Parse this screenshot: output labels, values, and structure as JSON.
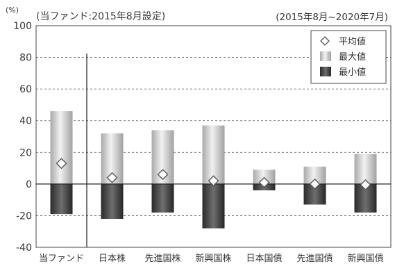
{
  "chart_data": {
    "type": "bar",
    "unit_label": "(%)",
    "title_left": "(当ファンド:2015年8月設定)",
    "title_right": "(2015年8月~2020年7月)",
    "categories": [
      "当ファンド",
      "日本株",
      "先進国株",
      "新興国株",
      "日本国債",
      "先進国債",
      "新興国債"
    ],
    "series": [
      {
        "name": "平均値",
        "values": [
          13,
          4,
          6,
          2,
          1,
          0,
          -0.5
        ]
      },
      {
        "name": "最大値",
        "values": [
          46,
          32,
          34,
          37,
          9,
          11,
          19
        ]
      },
      {
        "name": "最小値",
        "values": [
          -19,
          -22,
          -18,
          -28,
          -4,
          -13,
          -18
        ]
      }
    ],
    "ylim": [
      -40,
      100
    ],
    "yticks": [
      -40,
      -20,
      0,
      20,
      40,
      60,
      80,
      100
    ],
    "ytick_labels": [
      "-40",
      "-20",
      "0",
      "20",
      "40",
      "60",
      "80",
      "100"
    ],
    "grid": "dashed horizontal",
    "legend_position": "top-right",
    "colors": {
      "max_bar": "#c9c9c9",
      "min_bar": "#4a4a4a",
      "marker": "#ffffff"
    }
  }
}
